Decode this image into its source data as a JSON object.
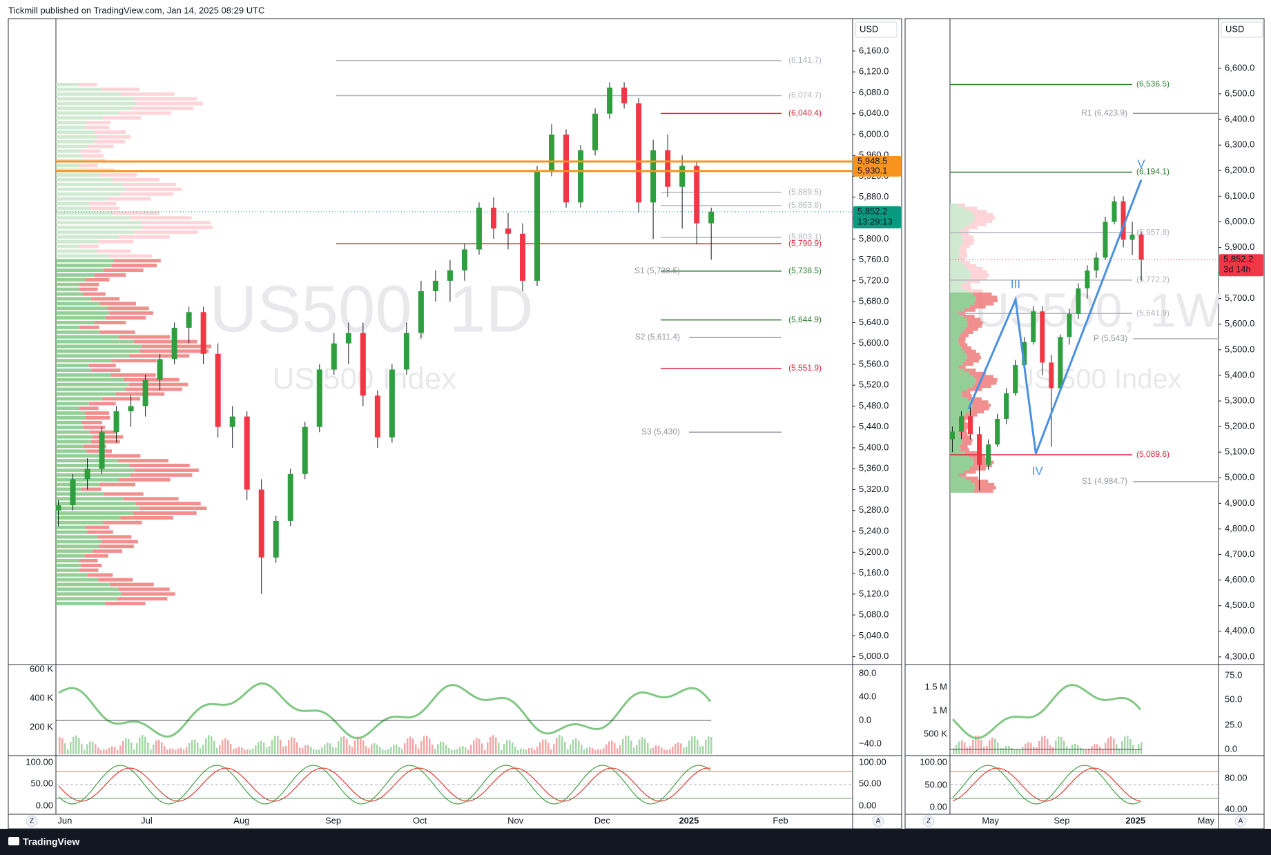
{
  "header": {
    "title": "Tickmill published on TradingView.com, Jan 14, 2025 08:29 UTC"
  },
  "left": {
    "watermark": "US500, 1D",
    "subtitle": "US 500 Index",
    "currency": "USD",
    "ylim": [
      4985,
      6222
    ],
    "yticks": [
      {
        "value": 6160,
        "label": "6,160.0"
      },
      {
        "value": 6120,
        "label": "6,120.0"
      },
      {
        "value": 6080,
        "label": "6,080.0"
      },
      {
        "value": 6040,
        "label": "6,040.0"
      },
      {
        "value": 6000,
        "label": "6,000.0"
      },
      {
        "value": 5960,
        "label": "5,960.0"
      },
      {
        "value": 5920,
        "label": "5,920.0"
      },
      {
        "value": 5880,
        "label": "5,880.0"
      },
      {
        "value": 5840,
        "label": "5,840.0"
      },
      {
        "value": 5800,
        "label": "5,800.0"
      },
      {
        "value": 5760,
        "label": "5,760.0"
      },
      {
        "value": 5720,
        "label": "5,720.0"
      },
      {
        "value": 5680,
        "label": "5,680.0"
      },
      {
        "value": 5640,
        "label": "5,640.0"
      },
      {
        "value": 5600,
        "label": "5,600.0"
      },
      {
        "value": 5560,
        "label": "5,560.0"
      },
      {
        "value": 5520,
        "label": "5,520.0"
      },
      {
        "value": 5480,
        "label": "5,480.0"
      },
      {
        "value": 5440,
        "label": "5,440.0"
      },
      {
        "value": 5400,
        "label": "5,400.0"
      },
      {
        "value": 5360,
        "label": "5,360.0"
      },
      {
        "value": 5320,
        "label": "5,320.0"
      },
      {
        "value": 5280,
        "label": "5,280.0"
      },
      {
        "value": 5240,
        "label": "5,240.0"
      },
      {
        "value": 5200,
        "label": "5,200.0"
      },
      {
        "value": 5160,
        "label": "5,160.0"
      },
      {
        "value": 5120,
        "label": "5,120.0"
      },
      {
        "value": 5080,
        "label": "5,080.0"
      },
      {
        "value": 5040,
        "label": "5,040.0"
      },
      {
        "value": 5000,
        "label": "5,000.0"
      }
    ],
    "candles": [
      [
        5280,
        5300,
        5250,
        5290
      ],
      [
        5290,
        5350,
        5280,
        5340
      ],
      [
        5340,
        5380,
        5320,
        5360
      ],
      [
        5360,
        5440,
        5350,
        5430
      ],
      [
        5430,
        5480,
        5410,
        5470
      ],
      [
        5470,
        5500,
        5440,
        5480
      ],
      [
        5480,
        5540,
        5460,
        5530
      ],
      [
        5530,
        5580,
        5510,
        5570
      ],
      [
        5570,
        5640,
        5560,
        5630
      ],
      [
        5630,
        5670,
        5600,
        5660
      ],
      [
        5660,
        5670,
        5560,
        5580
      ],
      [
        5580,
        5600,
        5420,
        5440
      ],
      [
        5440,
        5480,
        5400,
        5460
      ],
      [
        5460,
        5470,
        5300,
        5320
      ],
      [
        5320,
        5340,
        5120,
        5190
      ],
      [
        5190,
        5270,
        5180,
        5260
      ],
      [
        5260,
        5360,
        5250,
        5350
      ],
      [
        5350,
        5450,
        5340,
        5440
      ],
      [
        5440,
        5560,
        5430,
        5550
      ],
      [
        5550,
        5620,
        5540,
        5600
      ],
      [
        5600,
        5640,
        5560,
        5620
      ],
      [
        5620,
        5640,
        5480,
        5500
      ],
      [
        5500,
        5510,
        5400,
        5420
      ],
      [
        5420,
        5560,
        5410,
        5550
      ],
      [
        5550,
        5640,
        5540,
        5620
      ],
      [
        5620,
        5720,
        5610,
        5700
      ],
      [
        5700,
        5740,
        5680,
        5720
      ],
      [
        5720,
        5760,
        5680,
        5740
      ],
      [
        5740,
        5790,
        5720,
        5780
      ],
      [
        5780,
        5870,
        5770,
        5860
      ],
      [
        5860,
        5880,
        5800,
        5820
      ],
      [
        5820,
        5850,
        5780,
        5810
      ],
      [
        5810,
        5830,
        5700,
        5720
      ],
      [
        5720,
        5940,
        5710,
        5930
      ],
      [
        5930,
        6020,
        5920,
        6000
      ],
      [
        6000,
        6010,
        5860,
        5870
      ],
      [
        5870,
        5980,
        5860,
        5970
      ],
      [
        5970,
        6050,
        5960,
        6040
      ],
      [
        6040,
        6100,
        6030,
        6090
      ],
      [
        6090,
        6100,
        6050,
        6060
      ],
      [
        6060,
        6070,
        5850,
        5870
      ],
      [
        5870,
        5990,
        5800,
        5970
      ],
      [
        5970,
        6000,
        5880,
        5900
      ],
      [
        5900,
        5960,
        5820,
        5940
      ],
      [
        5940,
        5950,
        5790,
        5830
      ],
      [
        5830,
        5860,
        5760,
        5852.2
      ]
    ],
    "levels": [
      {
        "value": 6141.7,
        "label": "(6,141.7)",
        "color": "#b2b5be"
      },
      {
        "value": 6074.7,
        "label": "(6,074.7)",
        "color": "#b2b5be"
      },
      {
        "value": 6040.4,
        "label": "(6,040.4)",
        "color": "#e0243b"
      },
      {
        "value": 5889.5,
        "label": "(5,889.5)",
        "color": "#b2b5be"
      },
      {
        "value": 5863.8,
        "label": "(5,863.8)",
        "color": "#b2b5be"
      },
      {
        "value": 5803.1,
        "label": "(5,803.1)",
        "color": "#b2b5be"
      },
      {
        "value": 5790.9,
        "label": "(5,790.9)",
        "color": "#e0243b"
      },
      {
        "value": 5738.5,
        "label": "(5,738.5)",
        "pivot": "S1 (5,738.5)",
        "color": "#2e7d32"
      },
      {
        "value": 5644.9,
        "label": "(5,644.9)",
        "color": "#2e7d32"
      },
      {
        "value": 5611.4,
        "pivot": "S2 (5,611.4)",
        "color": "#9598a1"
      },
      {
        "value": 5551.9,
        "label": "(5,551.9)",
        "color": "#e0243b"
      },
      {
        "value": 5430,
        "pivot": "S3 (5,430)",
        "color": "#9598a1"
      }
    ],
    "badges": [
      {
        "value": 5948.5,
        "label": "5,948.5",
        "color": "#f7941d"
      },
      {
        "value": 5930.1,
        "label": "5,930.1",
        "color": "#f7941d"
      },
      {
        "value": 5852.2,
        "label": "5,852.2",
        "sub": "13:29:13",
        "color": "#089981"
      }
    ],
    "time_labels": [
      "Jun",
      "Jul",
      "Aug",
      "Sep",
      "Oct",
      "Nov",
      "Dec",
      "2025",
      "Feb"
    ],
    "ind1": {
      "left_ticks": [
        "600 K",
        "400 K",
        "200 K"
      ],
      "right_ticks": [
        "80.0",
        "40.0",
        "0.0",
        "−40.0"
      ]
    },
    "ind2": {
      "left_ticks": [
        "100.00",
        "50.00",
        "0.00"
      ],
      "right_ticks": [
        "100.00",
        "50.00",
        "0.00"
      ]
    }
  },
  "right": {
    "watermark": "US500, 1W",
    "subtitle": "US 500 Index",
    "currency": "USD",
    "ylim": [
      4270,
      6794
    ],
    "yticks": [
      {
        "value": 6600,
        "label": "6,600.0"
      },
      {
        "value": 6500,
        "label": "6,500.0"
      },
      {
        "value": 6400,
        "label": "6,400.0"
      },
      {
        "value": 6300,
        "label": "6,300.0"
      },
      {
        "value": 6200,
        "label": "6,200.0"
      },
      {
        "value": 6100,
        "label": "6,100.0"
      },
      {
        "value": 6000,
        "label": "6,000.0"
      },
      {
        "value": 5900,
        "label": "5,900.0"
      },
      {
        "value": 5800,
        "label": "5,800.0"
      },
      {
        "value": 5700,
        "label": "5,700.0"
      },
      {
        "value": 5600,
        "label": "5,600.0"
      },
      {
        "value": 5500,
        "label": "5,500.0"
      },
      {
        "value": 5400,
        "label": "5,400.0"
      },
      {
        "value": 5300,
        "label": "5,300.0"
      },
      {
        "value": 5200,
        "label": "5,200.0"
      },
      {
        "value": 5100,
        "label": "5,100.0"
      },
      {
        "value": 5000,
        "label": "5,000.0"
      },
      {
        "value": 4900,
        "label": "4,900.0"
      },
      {
        "value": 4800,
        "label": "4,800.0"
      },
      {
        "value": 4700,
        "label": "4,700.0"
      },
      {
        "value": 4600,
        "label": "4,600.0"
      },
      {
        "value": 4500,
        "label": "4,500.0"
      },
      {
        "value": 4400,
        "label": "4,400.0"
      },
      {
        "value": 4300,
        "label": "4,300.0"
      }
    ],
    "candles": [
      [
        5150,
        5200,
        5100,
        5180
      ],
      [
        5180,
        5260,
        5150,
        5240
      ],
      [
        5240,
        5280,
        5150,
        5170
      ],
      [
        5170,
        5200,
        4950,
        5050
      ],
      [
        5050,
        5150,
        5030,
        5130
      ],
      [
        5130,
        5250,
        5120,
        5230
      ],
      [
        5230,
        5350,
        5210,
        5330
      ],
      [
        5330,
        5460,
        5320,
        5440
      ],
      [
        5440,
        5550,
        5430,
        5530
      ],
      [
        5530,
        5670,
        5520,
        5650
      ],
      [
        5650,
        5670,
        5400,
        5450
      ],
      [
        5450,
        5480,
        5120,
        5350
      ],
      [
        5350,
        5560,
        5340,
        5550
      ],
      [
        5550,
        5660,
        5520,
        5640
      ],
      [
        5640,
        5760,
        5620,
        5740
      ],
      [
        5740,
        5830,
        5700,
        5810
      ],
      [
        5810,
        5880,
        5780,
        5860
      ],
      [
        5860,
        6020,
        5850,
        6000
      ],
      [
        6000,
        6100,
        5990,
        6080
      ],
      [
        6080,
        6100,
        5900,
        5930
      ],
      [
        5930,
        6000,
        5870,
        5950
      ],
      [
        5950,
        5960,
        5770,
        5852.2
      ]
    ],
    "levels": [
      {
        "value": 6536.5,
        "label": "(6,536.5)",
        "color": "#2e7d32"
      },
      {
        "value": 6423.9,
        "pivot": "R1 (6,423.9)",
        "color": "#9598a1"
      },
      {
        "value": 6194.1,
        "label": "(6,194.1)",
        "color": "#2e7d32"
      },
      {
        "value": 5957.8,
        "label": "(5,957.8)",
        "color": "#b2b5be"
      },
      {
        "value": 5772.2,
        "label": "(5,772.2)",
        "color": "#b2b5be"
      },
      {
        "value": 5641.9,
        "label": "(5,641.9)",
        "color": "#b2b5be"
      },
      {
        "value": 5543,
        "pivot": "P (5,543)",
        "color": "#b2b5be"
      },
      {
        "value": 5089.6,
        "label": "(5,089.6)",
        "color": "#e0243b"
      },
      {
        "value": 4984.7,
        "pivot": "S1 (4,984.7)",
        "color": "#9598a1"
      }
    ],
    "badges": [
      {
        "value": 5852.2,
        "label": "5,852.2",
        "sub": "3d 14h",
        "color": "#f23645"
      }
    ],
    "waves": [
      "III",
      "IV",
      "V"
    ],
    "time_labels": [
      "May",
      "Sep",
      "2025",
      "May"
    ],
    "ind1": {
      "left_ticks": [
        "1.5 M",
        "1 M",
        "500 K"
      ],
      "right_ticks": [
        "75.0",
        "50.0",
        "25.0",
        "0.0"
      ]
    },
    "ind2": {
      "left_ticks": [
        "100.00",
        "50.00",
        "0.00"
      ],
      "right_ticks": [
        "80.00",
        "40.00"
      ]
    }
  },
  "footer": {
    "brand": "TradingView",
    "buttons": [
      "Z",
      "A"
    ]
  }
}
